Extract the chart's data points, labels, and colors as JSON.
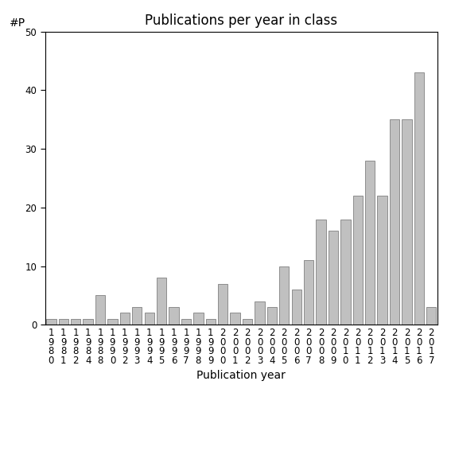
{
  "title": "Publications per year in class",
  "xlabel": "Publication year",
  "ylabel": "#P",
  "categories": [
    "1\n9\n8\n0",
    "1\n9\n8\n1",
    "1\n9\n8\n2",
    "1\n9\n8\n4",
    "1\n9\n8\n8",
    "1\n9\n9\n0",
    "1\n9\n9\n2",
    "1\n9\n9\n3",
    "1\n9\n9\n4",
    "1\n9\n9\n5",
    "1\n9\n9\n6",
    "1\n9\n9\n7",
    "1\n9\n9\n8",
    "1\n9\n9\n9",
    "2\n0\n0\n0",
    "2\n0\n0\n1",
    "2\n0\n0\n2",
    "2\n0\n0\n3",
    "2\n0\n0\n4",
    "2\n0\n0\n5",
    "2\n0\n0\n6",
    "2\n0\n0\n7",
    "2\n0\n0\n8",
    "2\n0\n0\n9",
    "2\n0\n1\n0",
    "2\n0\n1\n1",
    "2\n0\n1\n2",
    "2\n0\n1\n3",
    "2\n0\n1\n4",
    "2\n0\n1\n5",
    "2\n0\n1\n6",
    "2\n0\n1\n7"
  ],
  "values": [
    1,
    1,
    1,
    1,
    5,
    1,
    2,
    3,
    2,
    8,
    3,
    1,
    2,
    1,
    7,
    2,
    1,
    4,
    3,
    10,
    6,
    11,
    18,
    16,
    18,
    22,
    28,
    22,
    35,
    35,
    43,
    3
  ],
  "bar_color": "#c0c0c0",
  "bar_edge_color": "#808080",
  "ylim": [
    0,
    50
  ],
  "yticks": [
    0,
    10,
    20,
    30,
    40,
    50
  ],
  "background_color": "#ffffff",
  "title_fontsize": 12,
  "axis_label_fontsize": 10,
  "tick_fontsize": 8.5,
  "ylabel_fontsize": 10
}
